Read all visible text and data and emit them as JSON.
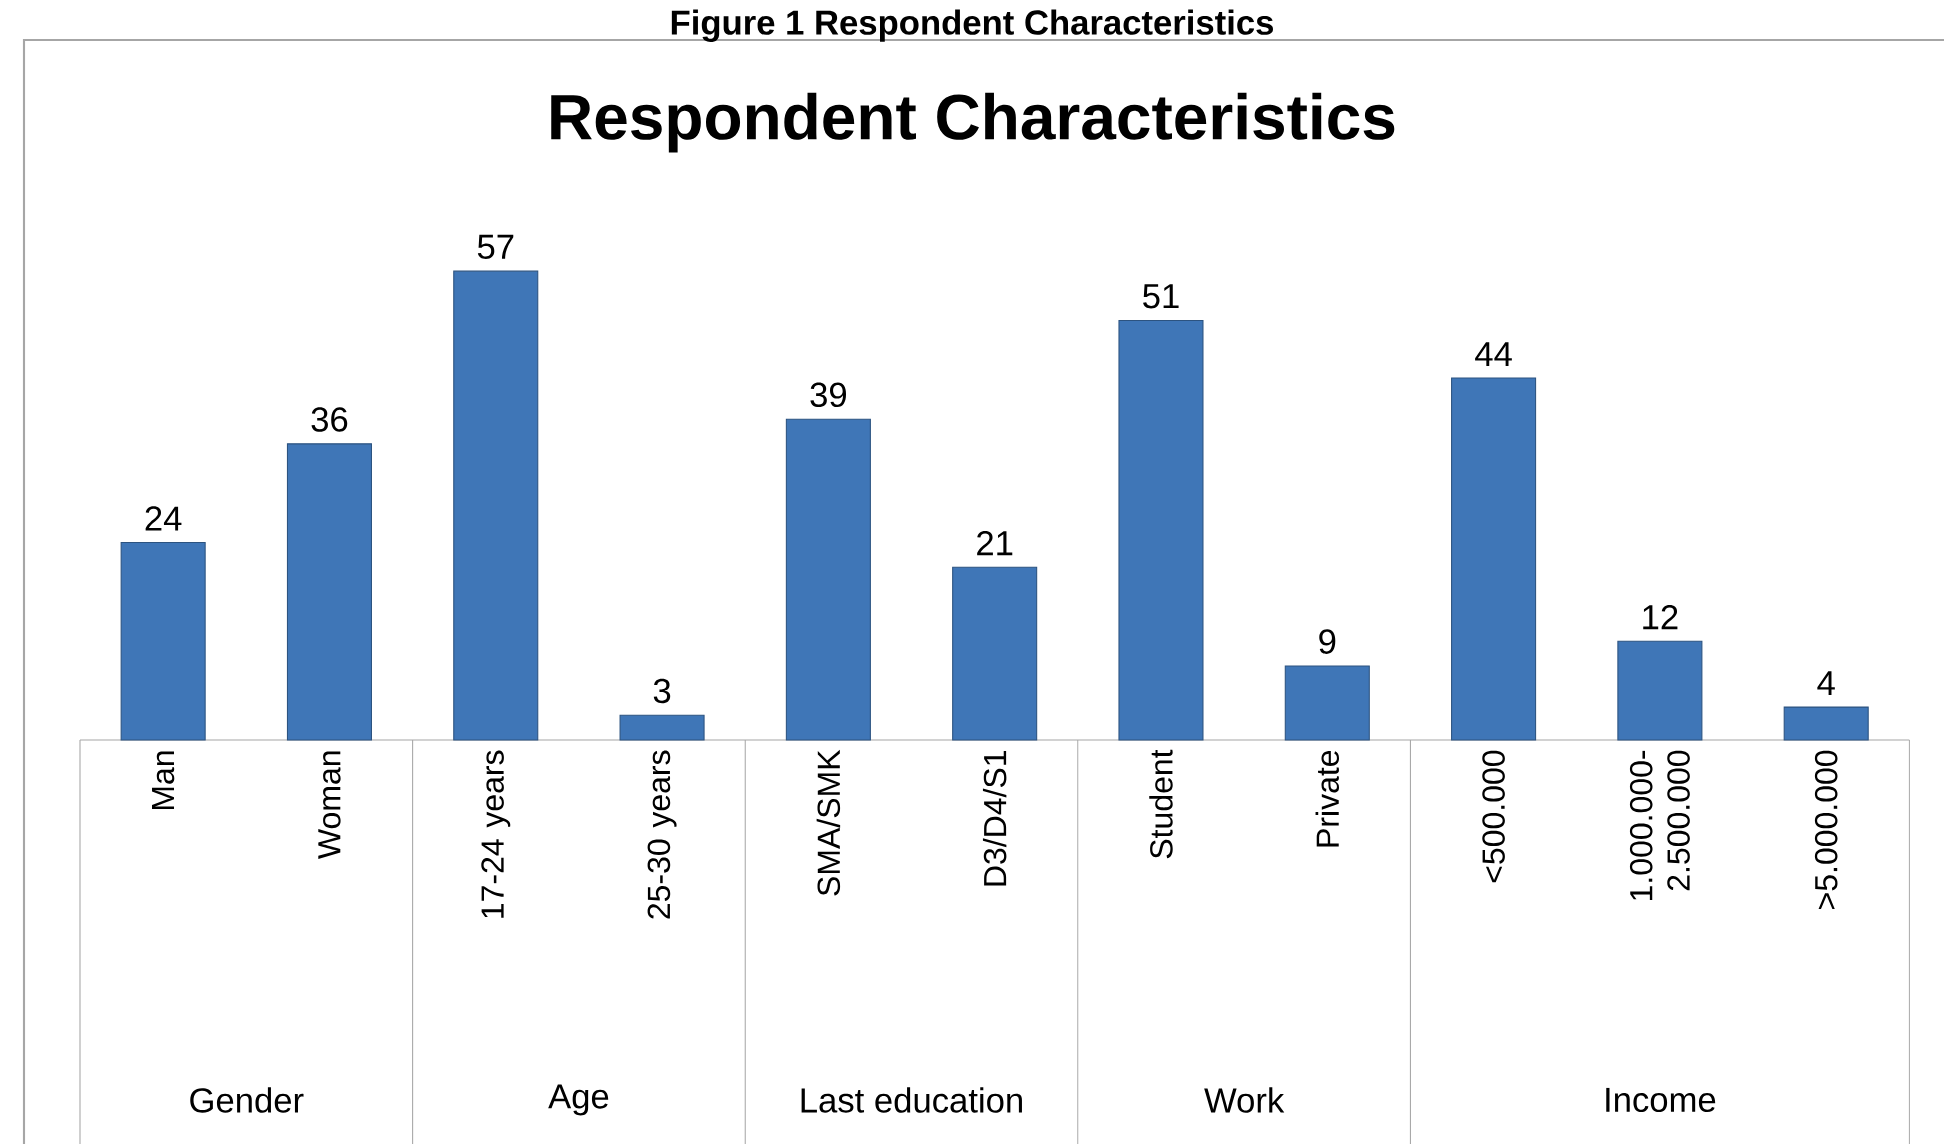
{
  "chart_data": {
    "type": "bar",
    "title": "Respondent Characteristics",
    "categories": [
      "Man",
      "Woman",
      "17-24 years",
      "25-30 years",
      "SMA/SMK",
      "D3/D4/S1",
      "Student",
      "Private",
      "<500.000",
      "1.000.000-2.500.000",
      ">5.000.000"
    ],
    "values": [
      24,
      36,
      57,
      3,
      39,
      21,
      51,
      9,
      44,
      12,
      4
    ],
    "color": "#3f76b7",
    "data_labels": true,
    "annotations": [
      "Figure 1 Respondent Characteristics",
      "Gender",
      "Age",
      "Last education",
      "Work",
      "Income"
    ]
  }
}
